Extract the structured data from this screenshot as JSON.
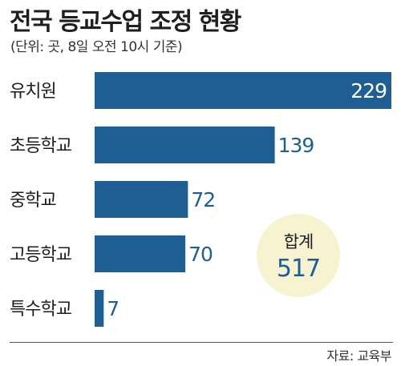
{
  "header": {
    "title": "전국 등교수업 조정 현황",
    "subtitle": "(단위: 곳, 8일 오전 10시 기준)"
  },
  "total": {
    "label": "합계",
    "value": "517"
  },
  "source": "자료: 교육부",
  "colors": {
    "bar": "#1e5e93",
    "total_bg": "#f7f2cf",
    "inside_label": "#ffffff"
  },
  "chart_data": {
    "type": "bar",
    "orientation": "horizontal",
    "categories": [
      "유치원",
      "초등학교",
      "중학교",
      "고등학교",
      "특수학교"
    ],
    "values": [
      229,
      139,
      72,
      70,
      7
    ],
    "xlim": [
      0,
      229
    ],
    "grid": false,
    "legend": "none"
  }
}
